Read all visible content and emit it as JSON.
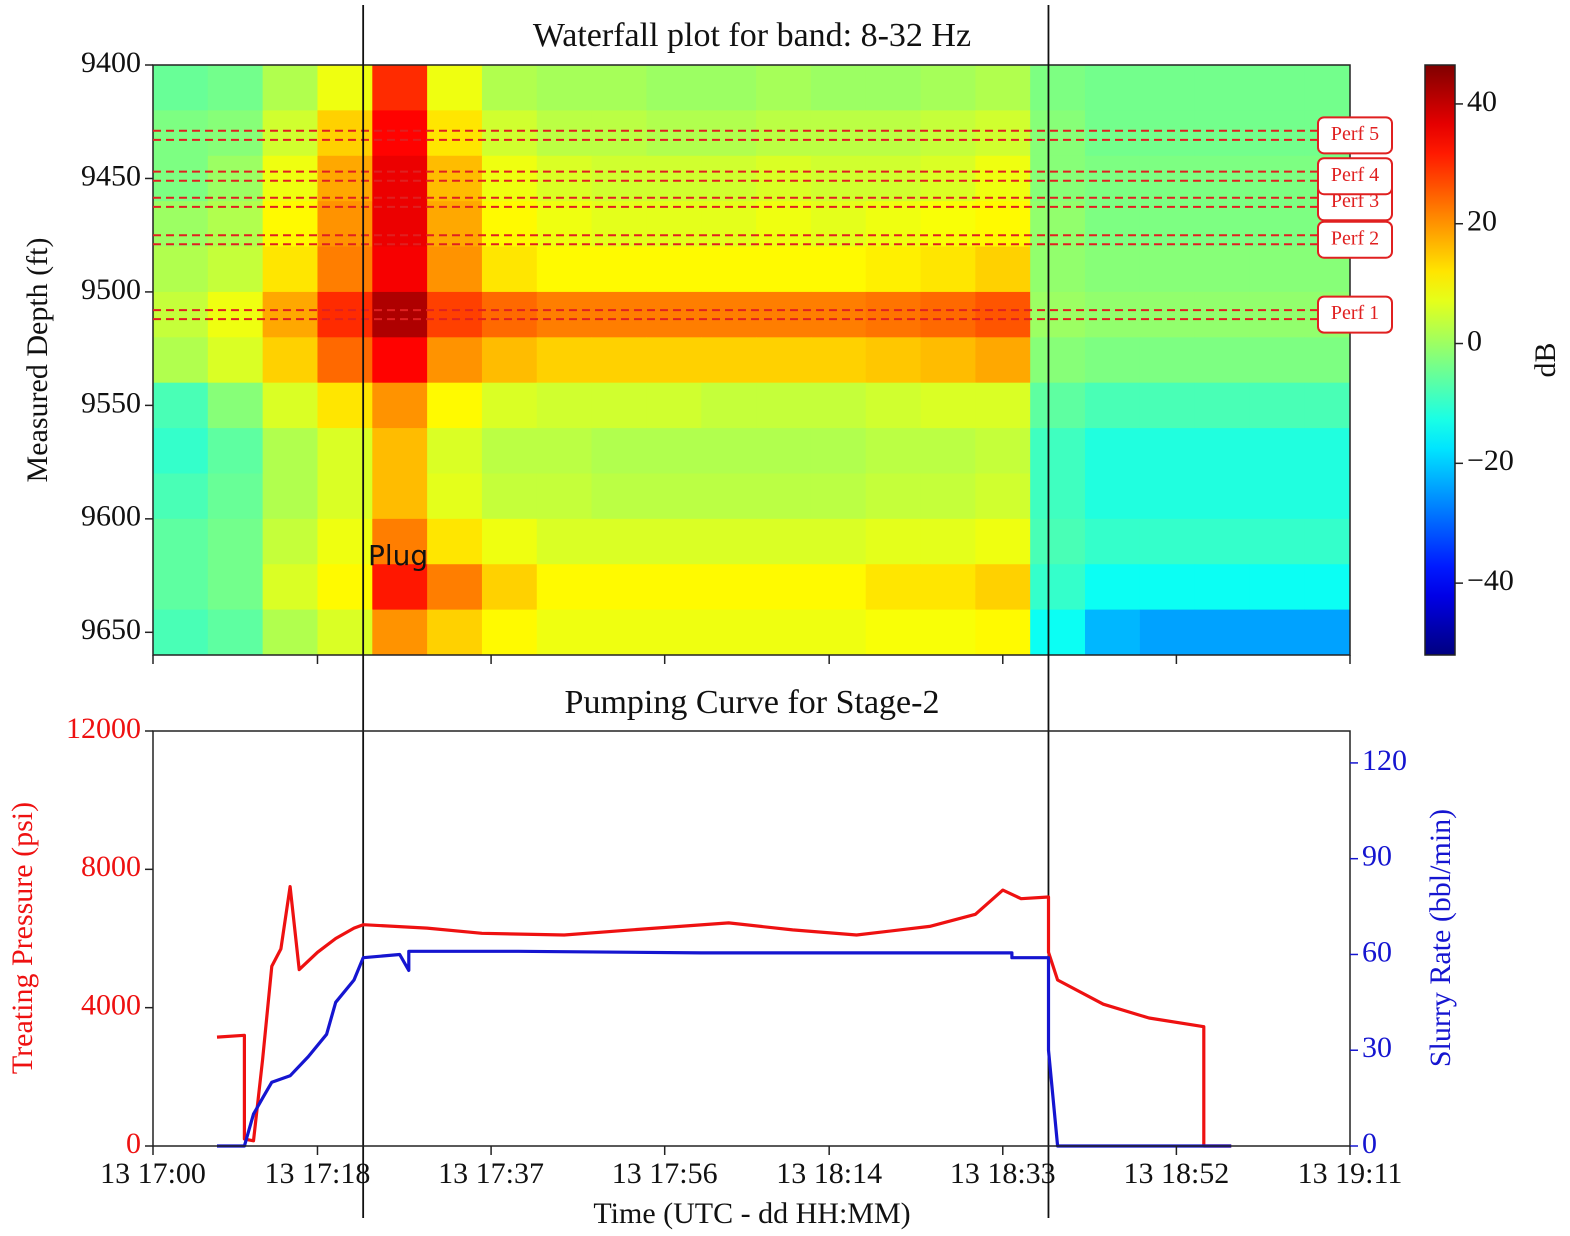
{
  "chart_data": [
    {
      "type": "heatmap",
      "title": "Waterfall plot for band: 8-32 Hz",
      "y_label": "Measured Depth (ft)",
      "colorbar_label": "dB",
      "colormap": "jet",
      "ylim": [
        9660,
        9400
      ],
      "yticks": [
        9400,
        9450,
        9500,
        9550,
        9600,
        9650
      ],
      "clim": [
        -52,
        46.5
      ],
      "cticks": [
        {
          "value": -40,
          "label": "−40"
        },
        {
          "value": -20,
          "label": "−20"
        },
        0,
        20,
        40
      ],
      "x": [
        "13 17:00",
        "13 17:06",
        "13 17:12",
        "13 17:18",
        "13 17:24",
        "13 17:30",
        "13 17:36",
        "13 17:42",
        "13 17:48",
        "13 17:54",
        "13 18:00",
        "13 18:06",
        "13 18:12",
        "13 18:18",
        "13 18:24",
        "13 18:30",
        "13 18:36",
        "13 18:42",
        "13 18:48",
        "13 18:54",
        "13 19:00",
        "13 19:06"
      ],
      "y": [
        9400,
        9420,
        9440,
        9460,
        9480,
        9500,
        9520,
        9540,
        9560,
        9580,
        9600,
        9620,
        9640
      ],
      "values": [
        [
          -5,
          -4,
          2,
          8,
          30,
          8,
          2,
          1,
          1,
          0,
          0,
          1,
          0,
          0,
          1,
          2,
          -3,
          -4,
          -4,
          -4,
          -4,
          -4
        ],
        [
          -3,
          -2,
          5,
          14,
          34,
          12,
          5,
          3,
          3,
          2,
          2,
          3,
          3,
          3,
          4,
          5,
          -2,
          -4,
          -4,
          -4,
          -4,
          -4
        ],
        [
          -3,
          0,
          8,
          18,
          36,
          16,
          8,
          6,
          5,
          5,
          5,
          6,
          5,
          5,
          6,
          8,
          -2,
          -3,
          -3,
          -3,
          -3,
          -3
        ],
        [
          0,
          2,
          10,
          20,
          36,
          18,
          10,
          8,
          7,
          7,
          7,
          8,
          7,
          8,
          9,
          10,
          -1,
          -3,
          -3,
          -3,
          -3,
          -3
        ],
        [
          2,
          4,
          12,
          22,
          35,
          20,
          12,
          10,
          10,
          10,
          10,
          10,
          10,
          11,
          12,
          14,
          -1,
          -2,
          -2,
          -2,
          -2,
          -2
        ],
        [
          4,
          8,
          18,
          30,
          42,
          28,
          24,
          22,
          22,
          22,
          22,
          22,
          22,
          23,
          24,
          26,
          0,
          -1,
          -1,
          -1,
          -1,
          -1
        ],
        [
          2,
          6,
          14,
          24,
          34,
          20,
          16,
          14,
          14,
          14,
          14,
          14,
          14,
          15,
          16,
          18,
          -2,
          -3,
          -3,
          -3,
          -3,
          -3
        ],
        [
          -8,
          -2,
          6,
          12,
          20,
          10,
          6,
          5,
          5,
          5,
          4,
          4,
          4,
          5,
          6,
          6,
          -6,
          -8,
          -8,
          -8,
          -8,
          -8
        ],
        [
          -10,
          -6,
          2,
          6,
          16,
          6,
          3,
          3,
          2,
          2,
          2,
          2,
          2,
          3,
          3,
          4,
          -9,
          -12,
          -12,
          -12,
          -12,
          -12
        ],
        [
          -8,
          -5,
          2,
          6,
          16,
          7,
          4,
          4,
          3,
          3,
          3,
          3,
          3,
          4,
          4,
          5,
          -9,
          -12,
          -12,
          -12,
          -12,
          -12
        ],
        [
          -6,
          -4,
          4,
          8,
          22,
          12,
          8,
          6,
          6,
          6,
          6,
          6,
          6,
          7,
          7,
          8,
          -8,
          -10,
          -10,
          -10,
          -10,
          -10
        ],
        [
          -6,
          -4,
          6,
          10,
          32,
          22,
          14,
          10,
          10,
          10,
          10,
          10,
          10,
          12,
          12,
          14,
          -10,
          -14,
          -14,
          -14,
          -14,
          -14
        ],
        [
          -8,
          -6,
          2,
          6,
          20,
          14,
          10,
          8,
          8,
          8,
          8,
          8,
          8,
          9,
          9,
          10,
          -14,
          -22,
          -24,
          -24,
          -24,
          -24
        ]
      ],
      "perfs": [
        {
          "label": "Perf 1",
          "depths": [
            9508,
            9512
          ]
        },
        {
          "label": "Perf 2",
          "depths": [
            9475,
            9479
          ]
        },
        {
          "label": "Perf 3",
          "depths": [
            9458.5,
            9462.5
          ]
        },
        {
          "label": "Perf 4",
          "depths": [
            9447,
            9451
          ]
        },
        {
          "label": "Perf 5",
          "depths": [
            9429,
            9433
          ]
        }
      ],
      "perf_color": "#e02020",
      "annotation": "Plug",
      "vlines": [
        "13 17:23",
        "13 18:38"
      ]
    },
    {
      "type": "line",
      "title": "Pumping Curve for Stage-2",
      "x_label": "Time (UTC - dd HH:MM)",
      "y_label": "Treating Pressure (psi)",
      "y2_label": "Slurry Rate (bbl/min)",
      "xlim": [
        "13 17:00",
        "13 19:11"
      ],
      "xticks": [
        "13 17:00",
        "13 17:18",
        "13 17:37",
        "13 17:56",
        "13 18:14",
        "13 18:33",
        "13 18:52",
        "13 19:11"
      ],
      "ylim": [
        0,
        12000
      ],
      "yticks": [
        0,
        4000,
        8000,
        12000
      ],
      "y2lim": [
        0,
        130
      ],
      "y2ticks": [
        0,
        30,
        60,
        90,
        120
      ],
      "series": [
        {
          "color": "#ee1111",
          "x": [
            "13 17:07",
            "13 17:10",
            "13 17:10",
            "13 17:11",
            "13 17:12",
            "13 17:13",
            "13 17:14",
            "13 17:15",
            "13 17:16",
            "13 17:18",
            "13 17:20",
            "13 17:22",
            "13 17:23",
            "13 17:30",
            "13 17:36",
            "13 17:45",
            "13 17:55",
            "13 18:03",
            "13 18:10",
            "13 18:17",
            "13 18:25",
            "13 18:30",
            "13 18:33",
            "13 18:35",
            "13 18:38",
            "13 18:38",
            "13 18:39",
            "13 18:44",
            "13 18:49",
            "13 18:55",
            "13 18:55",
            "13 18:58"
          ],
          "values": [
            3150,
            3200,
            200,
            150,
            2500,
            5200,
            5700,
            7500,
            5100,
            5600,
            6000,
            6300,
            6400,
            6300,
            6150,
            6100,
            6300,
            6450,
            6250,
            6100,
            6350,
            6700,
            7400,
            7150,
            7200,
            5600,
            4800,
            4100,
            3700,
            3450,
            0,
            0
          ]
        },
        {
          "color": "#1515d0",
          "axis": "y2",
          "x": [
            "13 17:07",
            "13 17:10",
            "13 17:11",
            "13 17:12",
            "13 17:13",
            "13 17:15",
            "13 17:17",
            "13 17:19",
            "13 17:20",
            "13 17:22",
            "13 17:23",
            "13 17:27",
            "13 17:28",
            "13 17:28",
            "13 17:40",
            "13 18:00",
            "13 18:20",
            "13 18:34",
            "13 18:34",
            "13 18:38",
            "13 18:38",
            "13 18:39",
            "13 18:58"
          ],
          "values": [
            0,
            0,
            10,
            15,
            20,
            22,
            28,
            35,
            45,
            52,
            59,
            60,
            55,
            61,
            61,
            60.5,
            60.5,
            60.5,
            59,
            59,
            30,
            0,
            0
          ]
        }
      ]
    }
  ]
}
